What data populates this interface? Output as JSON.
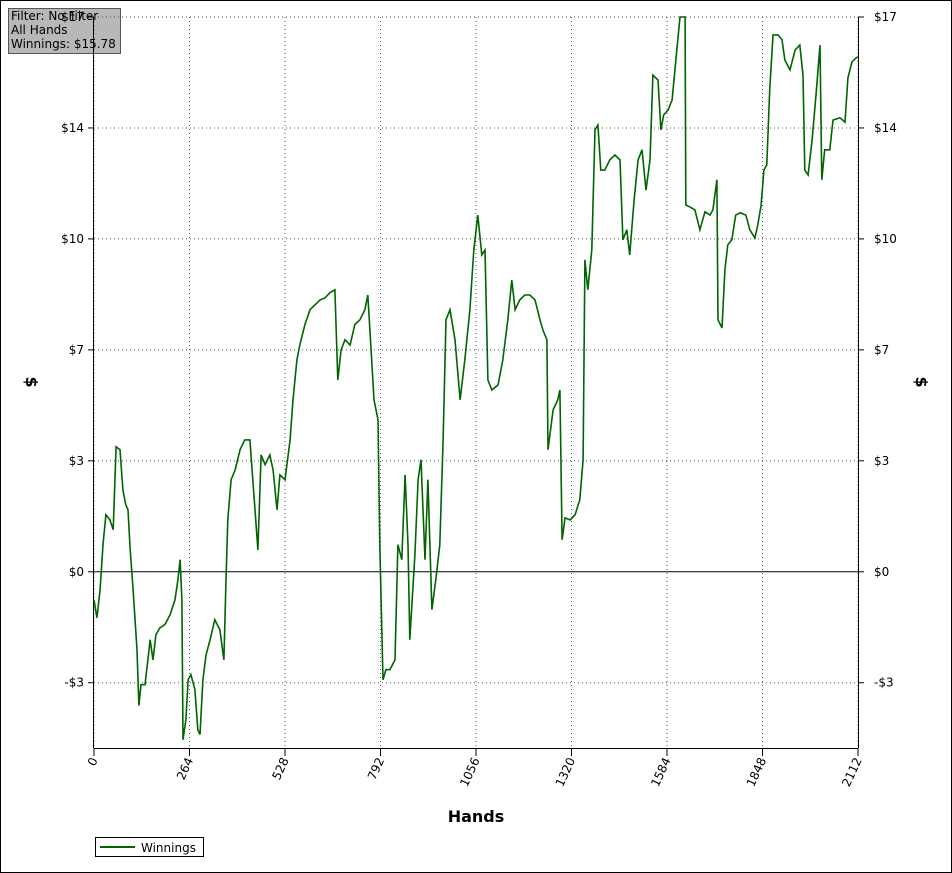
{
  "chart_data": {
    "type": "line",
    "annotation": [
      "Filter: No Filter",
      "All Hands",
      "Winnings: $15.78"
    ],
    "x_label": "Hands",
    "y_label": "$",
    "xlim": [
      0,
      2112
    ],
    "xticks": [
      0,
      264,
      528,
      792,
      1056,
      1320,
      1584,
      1848,
      2112
    ],
    "ylim": [
      -5.4,
      17
    ],
    "yticks": [
      {
        "value": -3.4,
        "label": "-$3"
      },
      {
        "value": 0,
        "label": "$0"
      },
      {
        "value": 3.4,
        "label": "$3"
      },
      {
        "value": 6.8,
        "label": "$7"
      },
      {
        "value": 10.2,
        "label": "$10"
      },
      {
        "value": 13.6,
        "label": "$14"
      },
      {
        "value": 17,
        "label": "$17"
      }
    ],
    "grid": true,
    "legend": "bottom-left",
    "x": [
      0,
      8,
      17,
      25,
      33,
      44,
      53,
      61,
      72,
      80,
      88,
      94,
      100,
      108,
      119,
      124,
      130,
      141,
      149,
      155,
      163,
      171,
      182,
      196,
      210,
      224,
      232,
      238,
      243,
      246,
      254,
      260,
      268,
      279,
      287,
      293,
      301,
      310,
      321,
      334,
      348,
      359,
      365,
      370,
      379,
      390,
      404,
      417,
      431,
      445,
      453,
      462,
      473,
      486,
      495,
      506,
      514,
      528,
      542,
      550,
      561,
      569,
      583,
      597,
      611,
      625,
      638,
      652,
      666,
      674,
      683,
      694,
      708,
      721,
      735,
      749,
      757,
      766,
      774,
      785,
      790,
      799,
      807,
      818,
      832,
      840,
      851,
      860,
      868,
      873,
      887,
      896,
      904,
      915,
      923,
      934,
      945,
      956,
      965,
      973,
      984,
      998,
      1012,
      1025,
      1039,
      1050,
      1061,
      1072,
      1081,
      1089,
      1100,
      1117,
      1130,
      1144,
      1155,
      1164,
      1177,
      1191,
      1205,
      1219,
      1233,
      1241,
      1252,
      1255,
      1269,
      1282,
      1288,
      1294,
      1302,
      1316,
      1330,
      1343,
      1352,
      1357,
      1365,
      1376,
      1385,
      1393,
      1401,
      1412,
      1426,
      1440,
      1454,
      1462,
      1473,
      1481,
      1493,
      1504,
      1515,
      1526,
      1537,
      1545,
      1559,
      1567,
      1575,
      1587,
      1598,
      1611,
      1620,
      1634,
      1636,
      1647,
      1661,
      1675,
      1689,
      1703,
      1711,
      1722,
      1725,
      1736,
      1744,
      1752,
      1763,
      1774,
      1786,
      1802,
      1813,
      1827,
      1835,
      1844,
      1852,
      1860,
      1868,
      1877,
      1891,
      1902,
      1910,
      1924,
      1938,
      1951,
      1960,
      1965,
      1974,
      1985,
      1996,
      2007,
      2012,
      2020,
      2034,
      2043,
      2062,
      2076,
      2084,
      2095,
      2106,
      2112
    ],
    "series": [
      {
        "name": "Winnings",
        "color": "#006400",
        "values": [
          -0.86,
          -1.41,
          -0.55,
          0.83,
          1.75,
          1.59,
          1.29,
          3.83,
          3.74,
          2.51,
          2.05,
          1.9,
          0.67,
          -0.55,
          -2.39,
          -4.1,
          -3.46,
          -3.46,
          -2.7,
          -2.08,
          -2.7,
          -1.93,
          -1.72,
          -1.62,
          -1.32,
          -0.86,
          -0.25,
          0.37,
          -0.86,
          -5.15,
          -4.53,
          -3.31,
          -3.15,
          -3.61,
          -4.84,
          -4.99,
          -3.31,
          -2.54,
          -2.08,
          -1.47,
          -1.78,
          -2.7,
          -0.25,
          1.59,
          2.82,
          3.12,
          3.74,
          4.04,
          4.04,
          1.9,
          0.67,
          3.58,
          3.28,
          3.58,
          3.12,
          1.9,
          2.97,
          2.82,
          4.04,
          5.27,
          6.49,
          6.95,
          7.57,
          8.03,
          8.18,
          8.33,
          8.39,
          8.55,
          8.64,
          5.88,
          6.8,
          7.11,
          6.95,
          7.57,
          7.72,
          8.03,
          8.48,
          6.8,
          5.27,
          4.66,
          0.83,
          -3.31,
          -3.0,
          -3.0,
          -2.7,
          0.83,
          0.37,
          2.97,
          0.83,
          -2.08,
          0.52,
          2.82,
          3.43,
          0.37,
          2.82,
          -1.16,
          -0.25,
          0.83,
          4.04,
          7.72,
          8.03,
          7.11,
          5.27,
          6.49,
          8.03,
          9.86,
          10.93,
          9.71,
          9.86,
          5.88,
          5.57,
          5.73,
          6.49,
          7.72,
          8.94,
          8.03,
          8.33,
          8.48,
          8.48,
          8.33,
          7.72,
          7.41,
          7.11,
          3.74,
          4.96,
          5.27,
          5.57,
          0.98,
          1.65,
          1.59,
          1.75,
          2.21,
          3.43,
          9.56,
          8.64,
          9.86,
          13.54,
          13.69,
          12.31,
          12.31,
          12.62,
          12.77,
          12.62,
          10.17,
          10.48,
          9.71,
          11.39,
          12.62,
          12.93,
          11.7,
          12.62,
          15.22,
          15.07,
          13.54,
          14.0,
          14.15,
          14.46,
          15.99,
          17.0,
          17.0,
          11.24,
          11.18,
          11.09,
          10.48,
          11.03,
          10.93,
          11.09,
          12.01,
          7.72,
          7.47,
          9.25,
          10.02,
          10.17,
          10.93,
          11.0,
          10.93,
          10.48,
          10.23,
          10.63,
          11.24,
          12.31,
          12.47,
          14.76,
          16.45,
          16.45,
          16.3,
          15.68,
          15.38,
          15.99,
          16.14,
          15.22,
          12.31,
          12.16,
          13.23,
          14.61,
          16.14,
          12.01,
          12.93,
          12.93,
          13.84,
          13.91,
          13.78,
          15.13,
          15.62,
          15.74,
          15.78
        ]
      }
    ]
  }
}
